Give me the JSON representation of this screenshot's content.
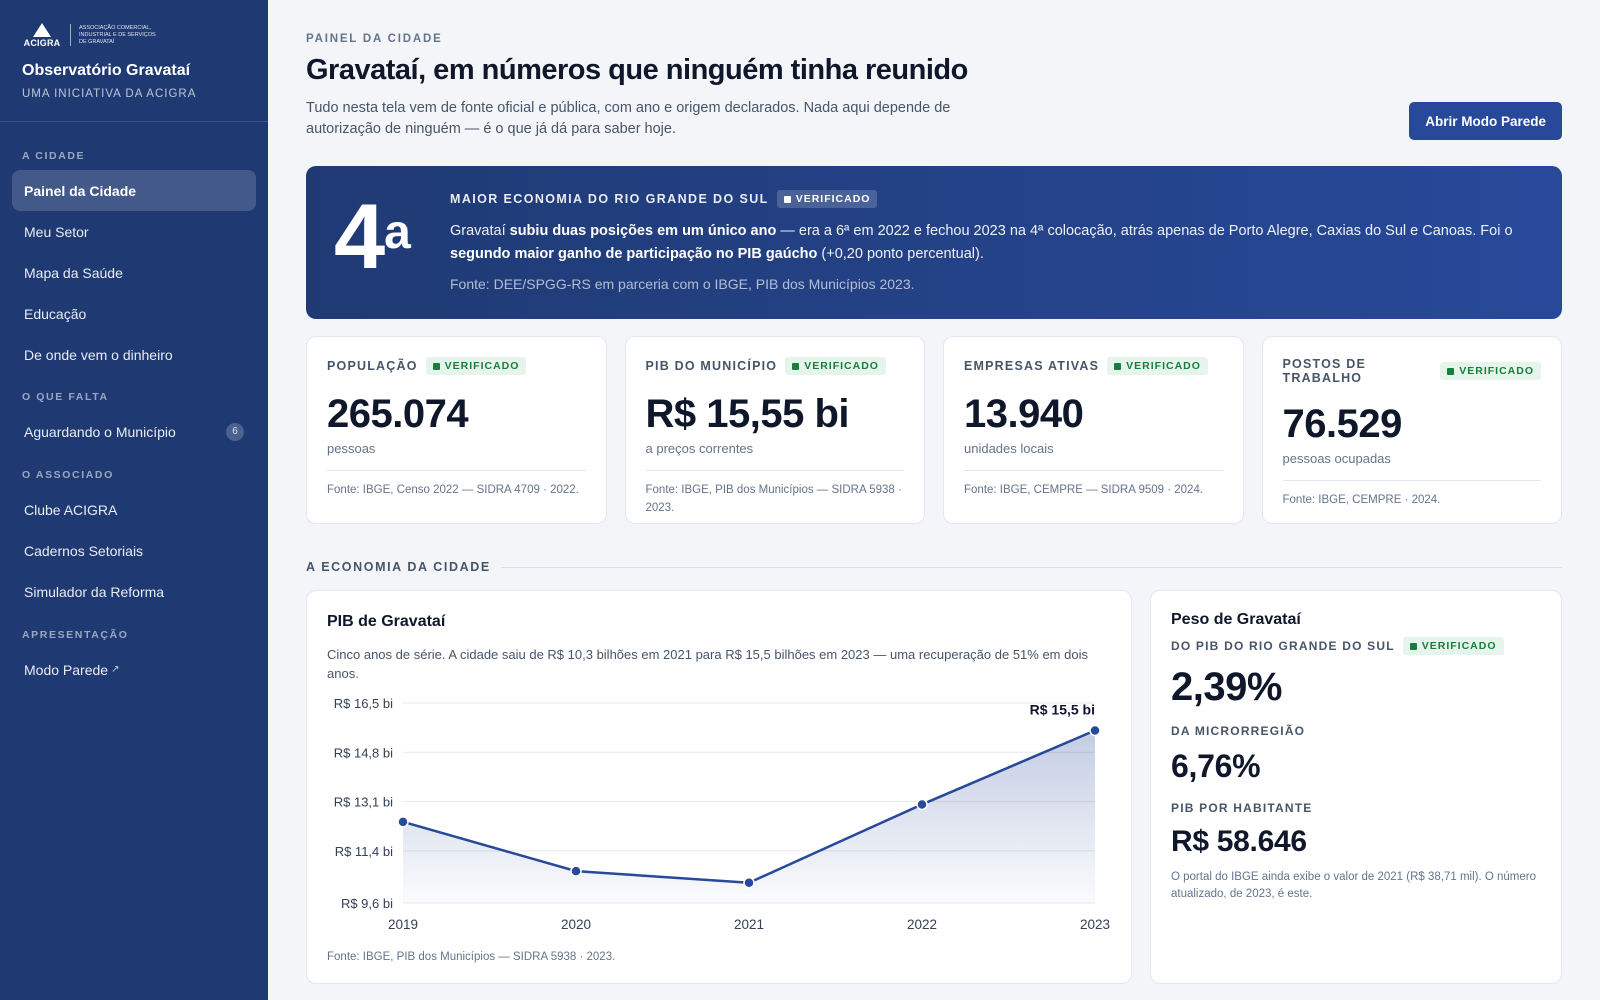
{
  "brand": {
    "logo_word": "ACIGRA",
    "logo_sub": "Associação Comercial, Industrial e de Serviços de Gravataí",
    "title": "Observatório Gravataí",
    "subtitle": "Uma iniciativa da ACIGRA"
  },
  "sidebar": {
    "sections": [
      {
        "label": "A cidade",
        "items": [
          {
            "label": "Painel da Cidade",
            "active": true
          },
          {
            "label": "Meu Setor"
          },
          {
            "label": "Mapa da Saúde"
          },
          {
            "label": "Educação"
          },
          {
            "label": "De onde vem o dinheiro"
          }
        ]
      },
      {
        "label": "O que falta",
        "items": [
          {
            "label": "Aguardando o Município",
            "badge": "6"
          }
        ]
      },
      {
        "label": "O associado",
        "items": [
          {
            "label": "Clube ACIGRA"
          },
          {
            "label": "Cadernos Setoriais"
          },
          {
            "label": "Simulador da Reforma"
          }
        ]
      },
      {
        "label": "Apresentação",
        "items": [
          {
            "label": "Modo Parede",
            "external_icon": "↗"
          }
        ]
      }
    ]
  },
  "header": {
    "eyebrow": "Painel da Cidade",
    "title": "Gravataí, em números que ninguém tinha reunido",
    "subtitle": "Tudo nesta tela vem de fonte oficial e pública, com ano e origem declarados. Nada aqui depende de autorização de ninguém — é o que já dá para saber hoje.",
    "wall_button": "Abrir Modo Parede"
  },
  "hero": {
    "rank": "4",
    "rank_suffix": "a",
    "label": "Maior economia do Rio Grande do Sul",
    "badge": "Verificado",
    "text_1": "Gravataí ",
    "text_bold_1": "subiu duas posições em um único ano",
    "text_2": " — era a 6ª em 2022 e fechou 2023 na 4ª colocação, atrás apenas de Porto Alegre, Caxias do Sul e Canoas. Foi o ",
    "text_bold_2": "segundo maior ganho de participação no PIB gaúcho",
    "text_3": " (+0,20 ponto percentual).",
    "source": "Fonte: DEE/SPGG-RS em parceria com o IBGE, PIB dos Municípios 2023."
  },
  "stats": [
    {
      "label": "População",
      "badge": "Verificado",
      "value": "265.074",
      "unit": "pessoas",
      "source": "Fonte: IBGE, Censo 2022 — SIDRA 4709 · 2022."
    },
    {
      "label": "PIB do município",
      "badge": "Verificado",
      "value": "R$ 15,55 bi",
      "unit": "a preços correntes",
      "source": "Fonte: IBGE, PIB dos Municípios — SIDRA 5938 · 2023."
    },
    {
      "label": "Empresas ativas",
      "badge": "Verificado",
      "value": "13.940",
      "unit": "unidades locais",
      "source": "Fonte: IBGE, CEMPRE — SIDRA 9509 · 2024."
    },
    {
      "label": "Postos de trabalho",
      "badge": "Verificado",
      "value": "76.529",
      "unit": "pessoas ocupadas",
      "source": "Fonte: IBGE, CEMPRE · 2024."
    }
  ],
  "section_economy": "A economia da cidade",
  "chart_card": {
    "title": "PIB de Gravataí",
    "description": "Cinco anos de série. A cidade saiu de R$ 10,3 bilhões em 2021 para R$ 15,5 bilhões em 2023 — uma recuperação de 51% em dois anos.",
    "source": "Fonte: IBGE, PIB dos Municípios — SIDRA 5938 · 2023."
  },
  "chart_data": {
    "type": "area",
    "x": [
      "2019",
      "2020",
      "2021",
      "2022",
      "2023"
    ],
    "values": [
      12.4,
      10.7,
      10.3,
      13.0,
      15.55
    ],
    "ylim": [
      9.6,
      16.5
    ],
    "yticks": [
      16.5,
      14.8,
      13.1,
      11.4,
      9.6
    ],
    "ytick_labels": [
      "R$ 16,5 bi",
      "R$ 14,8 bi",
      "R$ 13,1 bi",
      "R$ 11,4 bi",
      "R$ 9,6 bi"
    ],
    "last_point_label": "R$ 15,5 bi",
    "grid": true,
    "color": "#28499a"
  },
  "share_card": {
    "title": "Peso de Gravataí",
    "rs_label": "Do PIB do Rio Grande do Sul",
    "badge": "Verificado",
    "rs_value": "2,39%",
    "micro_label": "Da microrregião",
    "micro_value": "6,76%",
    "capita_label": "PIB por habitante",
    "capita_value": "R$ 58.646",
    "note": "O portal do IBGE ainda exibe o valor de 2021 (R$ 38,71 mil). O número atualizado, de 2023, é este."
  }
}
